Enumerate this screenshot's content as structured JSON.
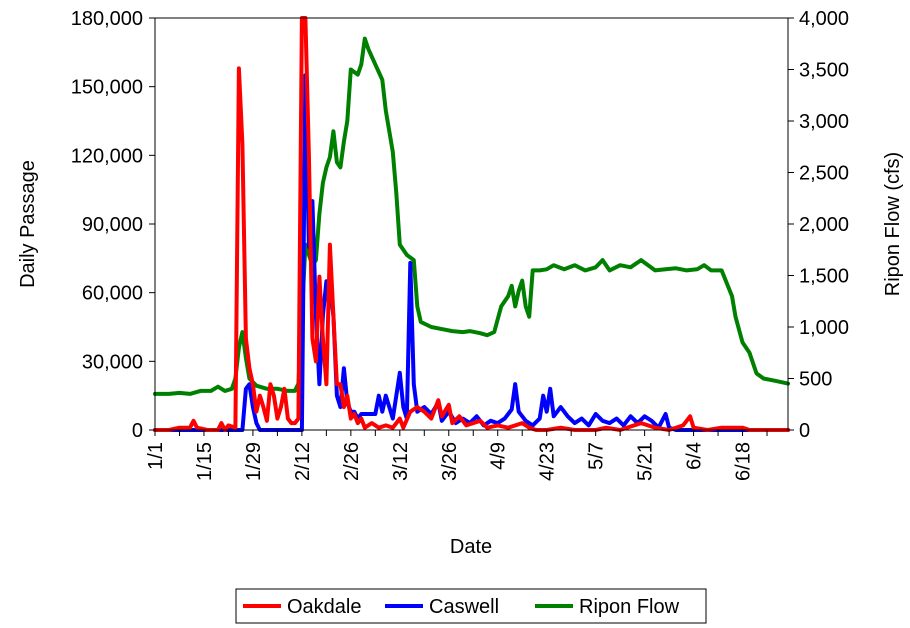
{
  "chart_data": {
    "type": "line",
    "title": "",
    "xlabel": "Date",
    "ylabel": "Daily Passage",
    "y2label": "Ripon Flow (cfs)",
    "ylim": [
      0,
      180000
    ],
    "y2lim": [
      0,
      4000
    ],
    "yticks": [
      "0",
      "30,000",
      "60,000",
      "90,000",
      "120,000",
      "150,000",
      "180,000"
    ],
    "y2ticks": [
      "0",
      "500",
      "1,000",
      "1,500",
      "2,000",
      "2,500",
      "3,000",
      "3,500",
      "4,000"
    ],
    "xlim": [
      "1/1",
      "7/1"
    ],
    "xticks": [
      "1/1",
      "1/15",
      "1/29",
      "2/12",
      "2/26",
      "3/12",
      "3/26",
      "4/9",
      "4/23",
      "5/7",
      "5/21",
      "6/4",
      "6/18"
    ],
    "grid": false,
    "legend_position": "bottom",
    "series": [
      {
        "name": "Oakdale",
        "axis": "left",
        "color": "#ff0000",
        "points": [
          [
            "1/1",
            0
          ],
          [
            "1/5",
            0
          ],
          [
            "1/8",
            1000
          ],
          [
            "1/11",
            1000
          ],
          [
            "1/12",
            4000
          ],
          [
            "1/13",
            1000
          ],
          [
            "1/16",
            0
          ],
          [
            "1/19",
            0
          ],
          [
            "1/20",
            3000
          ],
          [
            "1/21",
            0
          ],
          [
            "1/22",
            2000
          ],
          [
            "1/24",
            1000
          ],
          [
            "1/25",
            158000
          ],
          [
            "1/26",
            125000
          ],
          [
            "1/27",
            40000
          ],
          [
            "1/28",
            27000
          ],
          [
            "1/29",
            20000
          ],
          [
            "1/30",
            8000
          ],
          [
            "1/31",
            15000
          ],
          [
            "2/1",
            10000
          ],
          [
            "2/2",
            4000
          ],
          [
            "2/3",
            20000
          ],
          [
            "2/4",
            15000
          ],
          [
            "2/5",
            5000
          ],
          [
            "2/6",
            10000
          ],
          [
            "2/7",
            18000
          ],
          [
            "2/8",
            5000
          ],
          [
            "2/9",
            3000
          ],
          [
            "2/10",
            3000
          ],
          [
            "2/11",
            5000
          ],
          [
            "2/12",
            180000
          ],
          [
            "2/13",
            180000
          ],
          [
            "2/14",
            120000
          ],
          [
            "2/15",
            40000
          ],
          [
            "2/16",
            30000
          ],
          [
            "2/17",
            67000
          ],
          [
            "2/18",
            40000
          ],
          [
            "2/19",
            20000
          ],
          [
            "2/20",
            81000
          ],
          [
            "2/21",
            50000
          ],
          [
            "2/22",
            20000
          ],
          [
            "2/23",
            20000
          ],
          [
            "2/24",
            10000
          ],
          [
            "2/25",
            15000
          ],
          [
            "2/26",
            5000
          ],
          [
            "2/27",
            7000
          ],
          [
            "2/28",
            3000
          ],
          [
            "3/1",
            5000
          ],
          [
            "3/2",
            1000
          ],
          [
            "3/4",
            3000
          ],
          [
            "3/6",
            1000
          ],
          [
            "3/8",
            2000
          ],
          [
            "3/10",
            1000
          ],
          [
            "3/12",
            5000
          ],
          [
            "3/13",
            1000
          ],
          [
            "3/15",
            8000
          ],
          [
            "3/17",
            10000
          ],
          [
            "3/19",
            8000
          ],
          [
            "3/21",
            5000
          ],
          [
            "3/23",
            13000
          ],
          [
            "3/24",
            6000
          ],
          [
            "3/26",
            11000
          ],
          [
            "3/27",
            3000
          ],
          [
            "3/29",
            6000
          ],
          [
            "3/31",
            2000
          ],
          [
            "4/2",
            3000
          ],
          [
            "4/4",
            4000
          ],
          [
            "4/6",
            1000
          ],
          [
            "4/9",
            2000
          ],
          [
            "4/12",
            1000
          ],
          [
            "4/16",
            3000
          ],
          [
            "4/18",
            1000
          ],
          [
            "4/20",
            0
          ],
          [
            "4/23",
            0
          ],
          [
            "4/27",
            1000
          ],
          [
            "5/1",
            0
          ],
          [
            "5/7",
            0
          ],
          [
            "5/10",
            1000
          ],
          [
            "5/14",
            0
          ],
          [
            "5/20",
            3000
          ],
          [
            "5/24",
            1000
          ],
          [
            "5/28",
            0
          ],
          [
            "6/1",
            2000
          ],
          [
            "6/3",
            6000
          ],
          [
            "6/4",
            1000
          ],
          [
            "6/8",
            0
          ],
          [
            "6/12",
            1000
          ],
          [
            "6/16",
            1000
          ],
          [
            "6/18",
            1000
          ],
          [
            "6/20",
            0
          ],
          [
            "7/1",
            0
          ]
        ]
      },
      {
        "name": "Caswell",
        "axis": "left",
        "color": "#0000ff",
        "points": [
          [
            "1/1",
            0
          ],
          [
            "1/26",
            0
          ],
          [
            "1/27",
            18000
          ],
          [
            "1/28",
            20000
          ],
          [
            "1/29",
            10000
          ],
          [
            "1/30",
            3000
          ],
          [
            "1/31",
            0
          ],
          [
            "2/12",
            0
          ],
          [
            "2/13",
            155000
          ],
          [
            "2/14",
            80000
          ],
          [
            "2/15",
            100000
          ],
          [
            "2/16",
            50000
          ],
          [
            "2/17",
            20000
          ],
          [
            "2/18",
            50000
          ],
          [
            "2/19",
            65000
          ],
          [
            "2/20",
            62000
          ],
          [
            "2/21",
            50000
          ],
          [
            "2/22",
            15000
          ],
          [
            "2/23",
            10000
          ],
          [
            "2/24",
            27000
          ],
          [
            "2/25",
            12000
          ],
          [
            "2/26",
            8000
          ],
          [
            "2/27",
            8000
          ],
          [
            "2/28",
            5000
          ],
          [
            "3/1",
            7000
          ],
          [
            "3/3",
            7000
          ],
          [
            "3/5",
            7000
          ],
          [
            "3/6",
            15000
          ],
          [
            "3/7",
            8000
          ],
          [
            "3/8",
            15000
          ],
          [
            "3/10",
            5000
          ],
          [
            "3/11",
            15000
          ],
          [
            "3/12",
            25000
          ],
          [
            "3/13",
            10000
          ],
          [
            "3/14",
            5000
          ],
          [
            "3/15",
            73000
          ],
          [
            "3/16",
            20000
          ],
          [
            "3/17",
            8000
          ],
          [
            "3/19",
            10000
          ],
          [
            "3/21",
            7000
          ],
          [
            "3/23",
            12000
          ],
          [
            "3/24",
            4000
          ],
          [
            "3/26",
            8000
          ],
          [
            "3/28",
            3000
          ],
          [
            "3/30",
            5000
          ],
          [
            "4/1",
            3000
          ],
          [
            "4/3",
            6000
          ],
          [
            "4/5",
            2000
          ],
          [
            "4/7",
            4000
          ],
          [
            "4/9",
            3000
          ],
          [
            "4/11",
            5000
          ],
          [
            "4/13",
            9000
          ],
          [
            "4/14",
            20000
          ],
          [
            "4/15",
            8000
          ],
          [
            "4/17",
            4000
          ],
          [
            "4/19",
            2000
          ],
          [
            "4/21",
            5000
          ],
          [
            "4/22",
            15000
          ],
          [
            "4/23",
            8000
          ],
          [
            "4/24",
            18000
          ],
          [
            "4/25",
            6000
          ],
          [
            "4/27",
            10000
          ],
          [
            "4/29",
            6000
          ],
          [
            "5/1",
            3000
          ],
          [
            "5/3",
            5000
          ],
          [
            "5/5",
            2000
          ],
          [
            "5/7",
            7000
          ],
          [
            "5/9",
            4000
          ],
          [
            "5/11",
            3000
          ],
          [
            "5/13",
            5000
          ],
          [
            "5/15",
            2000
          ],
          [
            "5/17",
            6000
          ],
          [
            "5/19",
            3000
          ],
          [
            "5/21",
            6000
          ],
          [
            "5/23",
            4000
          ],
          [
            "5/25",
            1000
          ],
          [
            "5/27",
            7000
          ],
          [
            "5/28",
            1000
          ],
          [
            "5/30",
            0
          ],
          [
            "7/1",
            0
          ]
        ]
      },
      {
        "name": "Ripon Flow",
        "axis": "right",
        "color": "#008000",
        "points": [
          [
            "1/1",
            350
          ],
          [
            "1/5",
            350
          ],
          [
            "1/8",
            360
          ],
          [
            "1/11",
            350
          ],
          [
            "1/14",
            380
          ],
          [
            "1/17",
            380
          ],
          [
            "1/19",
            420
          ],
          [
            "1/21",
            380
          ],
          [
            "1/23",
            400
          ],
          [
            "1/24",
            500
          ],
          [
            "1/25",
            800
          ],
          [
            "1/26",
            950
          ],
          [
            "1/27",
            700
          ],
          [
            "1/28",
            500
          ],
          [
            "1/30",
            430
          ],
          [
            "2/2",
            400
          ],
          [
            "2/5",
            400
          ],
          [
            "2/8",
            380
          ],
          [
            "2/10",
            380
          ],
          [
            "2/11",
            450
          ],
          [
            "2/12",
            1100
          ],
          [
            "2/13",
            1800
          ],
          [
            "2/14",
            1700
          ],
          [
            "2/15",
            1600
          ],
          [
            "2/16",
            1650
          ],
          [
            "2/17",
            2100
          ],
          [
            "2/18",
            2400
          ],
          [
            "2/19",
            2550
          ],
          [
            "2/20",
            2650
          ],
          [
            "2/21",
            2900
          ],
          [
            "2/22",
            2600
          ],
          [
            "2/23",
            2550
          ],
          [
            "2/24",
            2800
          ],
          [
            "2/25",
            3000
          ],
          [
            "2/26",
            3500
          ],
          [
            "2/28",
            3450
          ],
          [
            "3/1",
            3550
          ],
          [
            "3/2",
            3800
          ],
          [
            "3/3",
            3700
          ],
          [
            "3/5",
            3550
          ],
          [
            "3/7",
            3400
          ],
          [
            "3/8",
            3100
          ],
          [
            "3/9",
            2900
          ],
          [
            "3/10",
            2700
          ],
          [
            "3/11",
            2300
          ],
          [
            "3/12",
            1800
          ],
          [
            "3/14",
            1700
          ],
          [
            "3/16",
            1650
          ],
          [
            "3/17",
            1200
          ],
          [
            "3/18",
            1050
          ],
          [
            "3/21",
            1000
          ],
          [
            "3/24",
            980
          ],
          [
            "3/27",
            960
          ],
          [
            "3/30",
            950
          ],
          [
            "4/1",
            960
          ],
          [
            "4/4",
            940
          ],
          [
            "4/6",
            920
          ],
          [
            "4/8",
            950
          ],
          [
            "4/10",
            1200
          ],
          [
            "4/12",
            1300
          ],
          [
            "4/13",
            1400
          ],
          [
            "4/14",
            1200
          ],
          [
            "4/15",
            1350
          ],
          [
            "4/16",
            1450
          ],
          [
            "4/17",
            1200
          ],
          [
            "4/18",
            1100
          ],
          [
            "4/19",
            1550
          ],
          [
            "4/21",
            1550
          ],
          [
            "4/23",
            1560
          ],
          [
            "4/25",
            1600
          ],
          [
            "4/28",
            1560
          ],
          [
            "5/1",
            1600
          ],
          [
            "5/4",
            1550
          ],
          [
            "5/7",
            1580
          ],
          [
            "5/9",
            1650
          ],
          [
            "5/11",
            1550
          ],
          [
            "5/14",
            1600
          ],
          [
            "5/17",
            1580
          ],
          [
            "5/20",
            1650
          ],
          [
            "5/22",
            1600
          ],
          [
            "5/24",
            1550
          ],
          [
            "5/27",
            1560
          ],
          [
            "5/30",
            1570
          ],
          [
            "6/2",
            1550
          ],
          [
            "6/5",
            1560
          ],
          [
            "6/7",
            1600
          ],
          [
            "6/9",
            1550
          ],
          [
            "6/12",
            1550
          ],
          [
            "6/15",
            1300
          ],
          [
            "6/16",
            1100
          ],
          [
            "6/18",
            850
          ],
          [
            "6/20",
            750
          ],
          [
            "6/22",
            550
          ],
          [
            "6/24",
            500
          ],
          [
            "6/27",
            480
          ],
          [
            "7/1",
            450
          ]
        ]
      }
    ]
  }
}
